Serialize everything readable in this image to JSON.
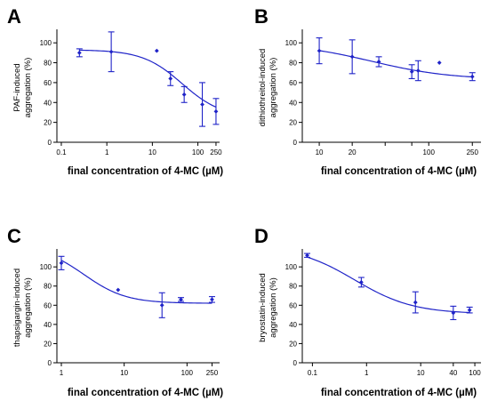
{
  "panel_labels": [
    "A",
    "B",
    "C",
    "D"
  ],
  "colors": {
    "series": "#1f23c8",
    "axis": "#000000"
  },
  "chart_data": [
    {
      "type": "scatter",
      "panel": "A",
      "xlabel": "final concentration of 4-MC (µM)",
      "ylabel_lines": [
        "PAF-induced",
        "aggregation (%)"
      ],
      "x_scale": "log",
      "xlim": [
        0.08,
        300
      ],
      "ylim": [
        0,
        110
      ],
      "x_ticks": [
        0.1,
        1,
        10,
        100,
        250
      ],
      "x_tick_labels": [
        "0.1",
        "1",
        "10",
        "100",
        "250"
      ],
      "y_ticks": [
        0,
        20,
        40,
        60,
        80,
        100
      ],
      "y_tick_labels": [
        "0",
        "20",
        "40",
        "60",
        "80",
        "100"
      ],
      "points": [
        {
          "x": 0.25,
          "y": 90,
          "err": 4
        },
        {
          "x": 1.25,
          "y": 91,
          "err": 20
        },
        {
          "x": 12.5,
          "y": 92,
          "err": 0
        },
        {
          "x": 25,
          "y": 64,
          "err": 7
        },
        {
          "x": 50,
          "y": 48,
          "err": 8
        },
        {
          "x": 125,
          "y": 38,
          "err": 22
        },
        {
          "x": 250,
          "y": 31,
          "err": 13
        }
      ],
      "curve": {
        "bottom": 25,
        "top": 93,
        "ec50": 45,
        "hill": 1.0
      }
    },
    {
      "type": "scatter",
      "panel": "B",
      "xlabel": "final concentration of 4-MC (µM)",
      "ylabel_lines": [
        "dithiothreitol-induced",
        "aggregation (%)"
      ],
      "x_scale": "log",
      "xlim": [
        7,
        300
      ],
      "ylim": [
        0,
        110
      ],
      "x_ticks": [
        10,
        20,
        40,
        70,
        100,
        250
      ],
      "x_tick_labels": [
        "10",
        "20",
        "",
        "",
        "100",
        "250"
      ],
      "y_ticks": [
        0,
        20,
        40,
        60,
        80,
        100
      ],
      "y_tick_labels": [
        "0",
        "20",
        "40",
        "60",
        "80",
        "100"
      ],
      "points": [
        {
          "x": 10,
          "y": 92,
          "err": 13
        },
        {
          "x": 20,
          "y": 86,
          "err": 17
        },
        {
          "x": 35,
          "y": 81,
          "err": 5
        },
        {
          "x": 70,
          "y": 71,
          "err": 7
        },
        {
          "x": 80,
          "y": 72,
          "err": 10
        },
        {
          "x": 125,
          "y": 80,
          "err": 0
        },
        {
          "x": 250,
          "y": 66,
          "err": 4
        }
      ],
      "curve": {
        "bottom": 63,
        "top": 100,
        "ec50": 30,
        "hill": 1.2
      }
    },
    {
      "type": "scatter",
      "panel": "C",
      "xlabel": "final concentration of 4-MC (µM)",
      "ylabel_lines": [
        "thapsigargin-induced",
        "aggregation (%)"
      ],
      "x_scale": "log",
      "xlim": [
        0.85,
        330
      ],
      "ylim": [
        0,
        115
      ],
      "x_ticks": [
        1,
        10,
        100,
        250
      ],
      "x_tick_labels": [
        "1",
        "10",
        "100",
        "250"
      ],
      "y_ticks": [
        0,
        20,
        40,
        60,
        80,
        100
      ],
      "y_tick_labels": [
        "0",
        "20",
        "40",
        "60",
        "80",
        "100"
      ],
      "points": [
        {
          "x": 1,
          "y": 104,
          "err": 7
        },
        {
          "x": 8,
          "y": 76,
          "err": 0
        },
        {
          "x": 40,
          "y": 60,
          "err": 13
        },
        {
          "x": 80,
          "y": 66,
          "err": 2
        },
        {
          "x": 250,
          "y": 66,
          "err": 3
        }
      ],
      "curve": {
        "bottom": 62,
        "top": 122,
        "ec50": 2.3,
        "hill": 1.3
      }
    },
    {
      "type": "scatter",
      "panel": "D",
      "xlabel": "final concentration of 4-MC (µM)",
      "ylabel_lines": [
        "bryostatin-induced",
        "aggregation (%)"
      ],
      "x_scale": "log",
      "xlim": [
        0.065,
        130
      ],
      "ylim": [
        0,
        115
      ],
      "x_ticks": [
        0.1,
        1,
        10,
        40,
        100
      ],
      "x_tick_labels": [
        "0.1",
        "1",
        "10",
        "40",
        "100"
      ],
      "y_ticks": [
        0,
        20,
        40,
        60,
        80,
        100
      ],
      "y_tick_labels": [
        "0",
        "20",
        "40",
        "60",
        "80",
        "100"
      ],
      "points": [
        {
          "x": 0.08,
          "y": 112,
          "err": 2
        },
        {
          "x": 0.8,
          "y": 84,
          "err": 5
        },
        {
          "x": 8,
          "y": 63,
          "err": 11
        },
        {
          "x": 40,
          "y": 52,
          "err": 7
        },
        {
          "x": 80,
          "y": 55,
          "err": 3
        }
      ],
      "curve": {
        "bottom": 51,
        "top": 122,
        "ec50": 0.6,
        "hill": 0.8
      }
    }
  ]
}
